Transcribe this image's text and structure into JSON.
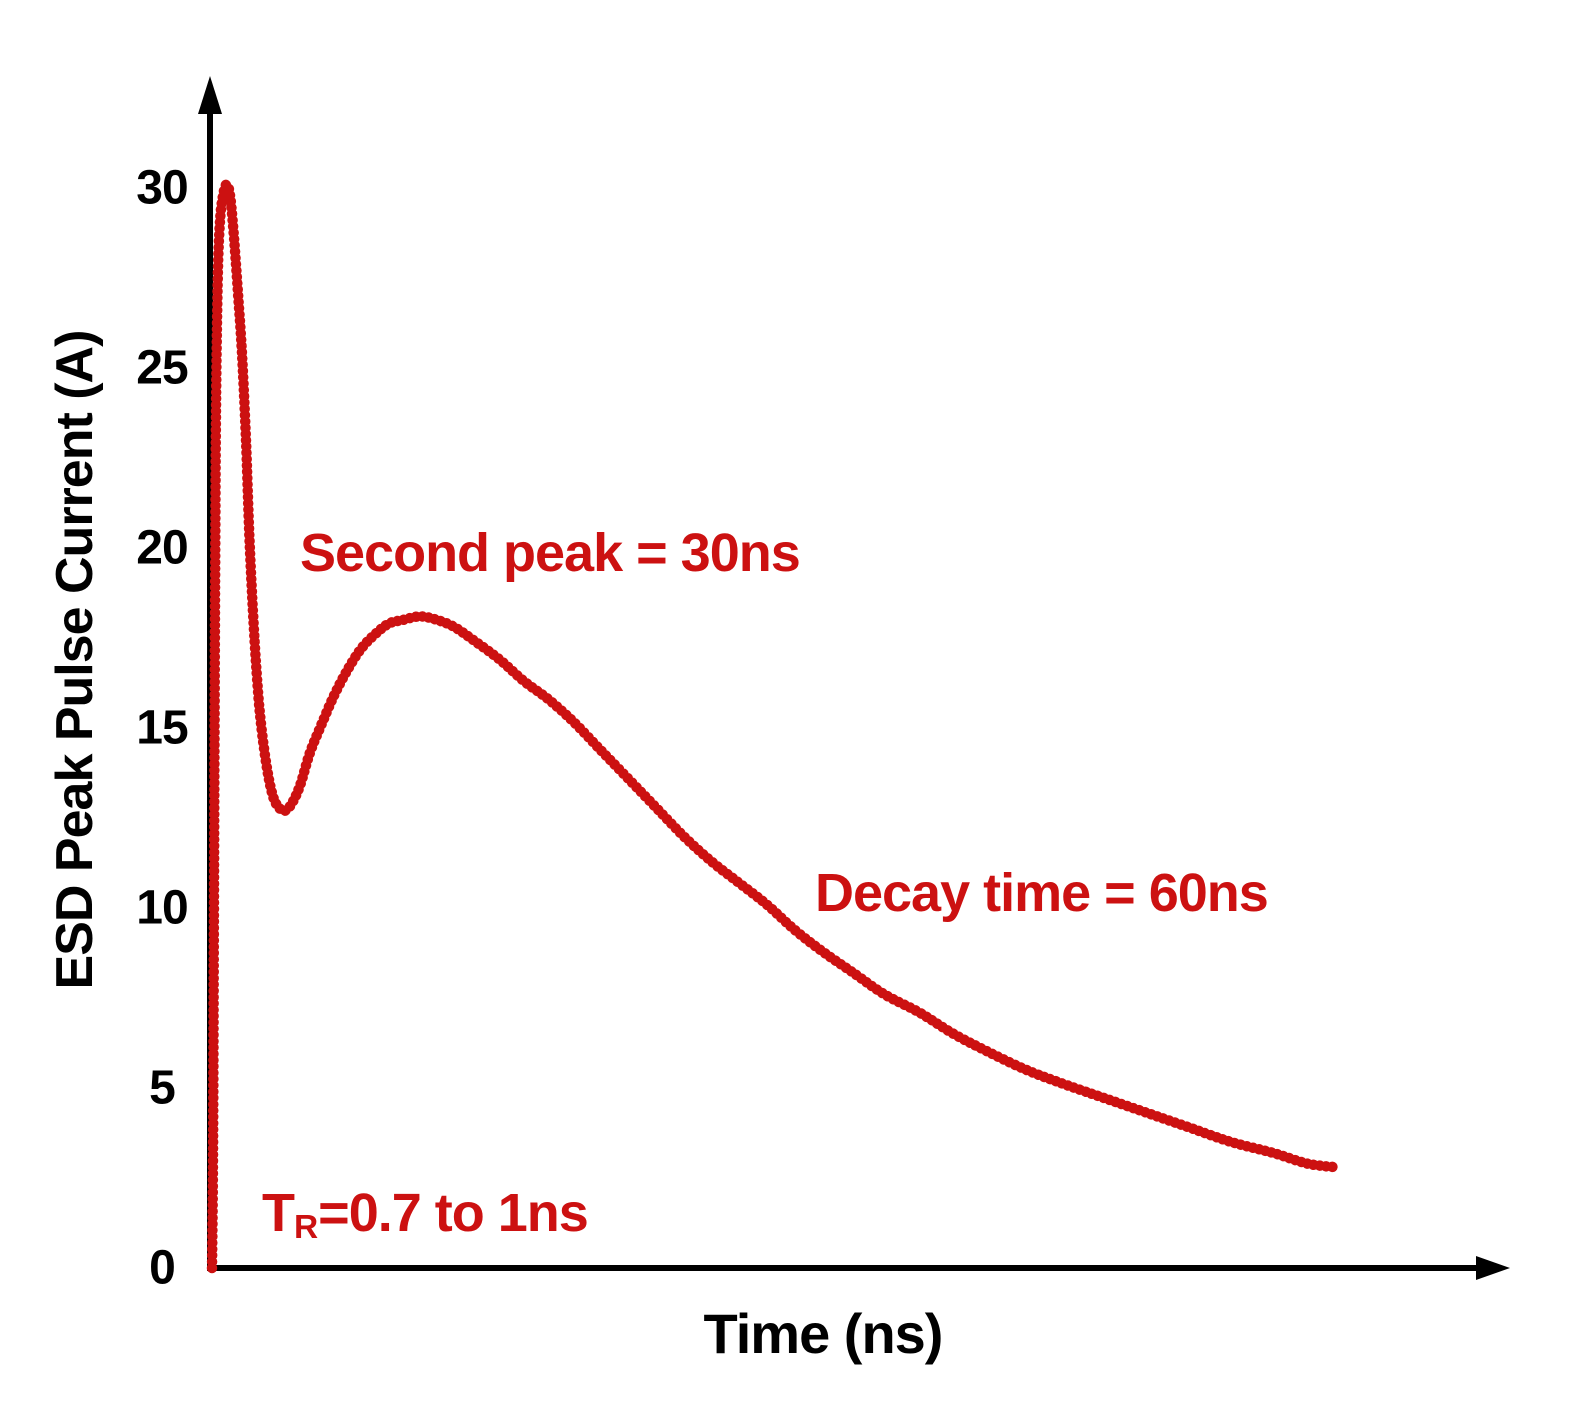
{
  "figure": {
    "background": "#ffffff",
    "axis_color": "#000000",
    "accent_red": "#cc1111"
  },
  "chart_data": {
    "type": "line",
    "title": "",
    "xlabel": "Time (ns)",
    "ylabel": "ESD Peak Pulse Current (A)",
    "xlim": [
      0,
      187
    ],
    "ylim": [
      0,
      32
    ],
    "y_ticks": [
      0,
      5,
      10,
      15,
      20,
      25,
      30
    ],
    "x_ticks": [],
    "grid": false,
    "legend": "none",
    "series": [
      {
        "name": "ESD current waveform",
        "color": "#cc1111",
        "style": "dotted-thick",
        "points": [
          [
            0,
            0
          ],
          [
            0.15,
            3
          ],
          [
            0.25,
            8
          ],
          [
            0.35,
            14
          ],
          [
            0.45,
            19
          ],
          [
            0.55,
            23
          ],
          [
            0.7,
            26
          ],
          [
            0.9,
            28
          ],
          [
            1.2,
            29.2
          ],
          [
            1.6,
            29.8
          ],
          [
            2.1,
            30.1
          ],
          [
            2.6,
            29.8
          ],
          [
            3.1,
            28.8
          ],
          [
            3.7,
            27.2
          ],
          [
            4.3,
            25.5
          ],
          [
            4.9,
            23
          ],
          [
            5.4,
            20.3
          ],
          [
            6.0,
            17.9
          ],
          [
            6.6,
            16.1
          ],
          [
            7.2,
            14.9
          ],
          [
            8.0,
            13.8
          ],
          [
            8.8,
            13.1
          ],
          [
            9.6,
            12.8
          ],
          [
            10.5,
            12.7
          ],
          [
            11.5,
            12.9
          ],
          [
            12.7,
            13.4
          ],
          [
            14.1,
            14.3
          ],
          [
            15.8,
            15.1
          ],
          [
            17.6,
            15.9
          ],
          [
            19.5,
            16.6
          ],
          [
            21.5,
            17.2
          ],
          [
            23.5,
            17.6
          ],
          [
            25.5,
            17.9
          ],
          [
            27.5,
            18.0
          ],
          [
            30.0,
            18.1
          ],
          [
            32.5,
            18.0
          ],
          [
            35.0,
            17.8
          ],
          [
            38.0,
            17.4
          ],
          [
            41.5,
            16.9
          ],
          [
            45.0,
            16.3
          ],
          [
            48.5,
            15.8
          ],
          [
            52.0,
            15.2
          ],
          [
            56.0,
            14.4
          ],
          [
            60.0,
            13.6
          ],
          [
            64.0,
            12.8
          ],
          [
            68.0,
            12.0
          ],
          [
            72.0,
            11.3
          ],
          [
            76.0,
            10.7
          ],
          [
            80.0,
            10.1
          ],
          [
            84.0,
            9.4
          ],
          [
            88.0,
            8.8
          ],
          [
            92.5,
            8.2
          ],
          [
            97.0,
            7.6
          ],
          [
            102.0,
            7.1
          ],
          [
            107.0,
            6.5
          ],
          [
            112.0,
            6.0
          ],
          [
            117.5,
            5.5
          ],
          [
            123.0,
            5.1
          ],
          [
            129.0,
            4.7
          ],
          [
            135.0,
            4.3
          ],
          [
            141.0,
            3.9
          ],
          [
            147.0,
            3.5
          ],
          [
            153.0,
            3.2
          ],
          [
            158.0,
            2.9
          ],
          [
            162.0,
            2.8
          ]
        ]
      }
    ],
    "annotations": [
      {
        "text": "Second peak = 30ns"
      },
      {
        "text": "Decay time = 60ns"
      },
      {
        "prefix": "T",
        "sub": "R",
        "rest": "=0.7 to 1ns"
      }
    ]
  }
}
